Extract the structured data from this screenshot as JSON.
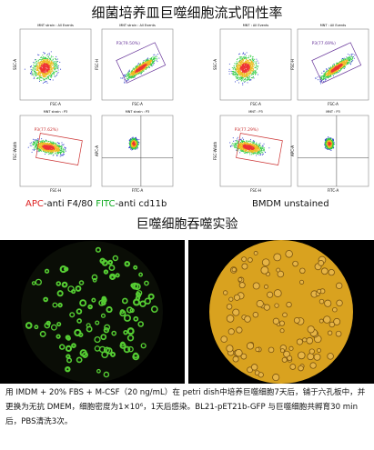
{
  "flow_title": "细菌培养皿巨噬细胞流式阳性率",
  "plots": [
    {
      "title": "MNT strain : All Events",
      "x_label": "FSC-A",
      "y_label": "SSC-A",
      "gate": null
    },
    {
      "title": "MNT strain : All Events",
      "x_label": "FSC-A",
      "y_label": "FSC-H",
      "gate": "P3(79.50%)"
    },
    {
      "title": "MNT strain : P3",
      "x_label": "FSC-H",
      "y_label": "FSC-Width",
      "gate": "P3(77.62%)"
    },
    {
      "title": "MNT strain : P3",
      "x_label": "FITC-A",
      "y_label": "APC-A",
      "gate": null
    },
    {
      "title": "MNT : All Events",
      "x_label": "FSC-A",
      "y_label": "SSC-A",
      "gate": null
    },
    {
      "title": "MNT : All Events",
      "x_label": "FSC-A",
      "y_label": "FSC-H",
      "gate": "P3(77.69%)"
    },
    {
      "title": "MNT : P3",
      "x_label": "FSC-H",
      "y_label": "FSC-Width",
      "gate": "P3(77.29%)"
    },
    {
      "title": "MNT : P3",
      "x_label": "FITC-A",
      "y_label": "APC-A",
      "gate": null
    }
  ],
  "caption_left": [
    "APC",
    "-anti F4/80",
    "FITC",
    "-anti cd11b"
  ],
  "caption_right": "BMDM unstained",
  "phago_title": "巨噬细胞吞噬实验",
  "paragraph": "用 IMDM + 20% FBS + M-CSF（20 ng/mL）在 petri dish中培养巨噬细胞7天后，铺于六孔板中，并更换为无抗 DMEM，细胞密度为1×10⁶，1天后感染。BL21-pET21b-GFP 与巨噬细胞共孵育30 min后，PBS清洗3次。"
}
